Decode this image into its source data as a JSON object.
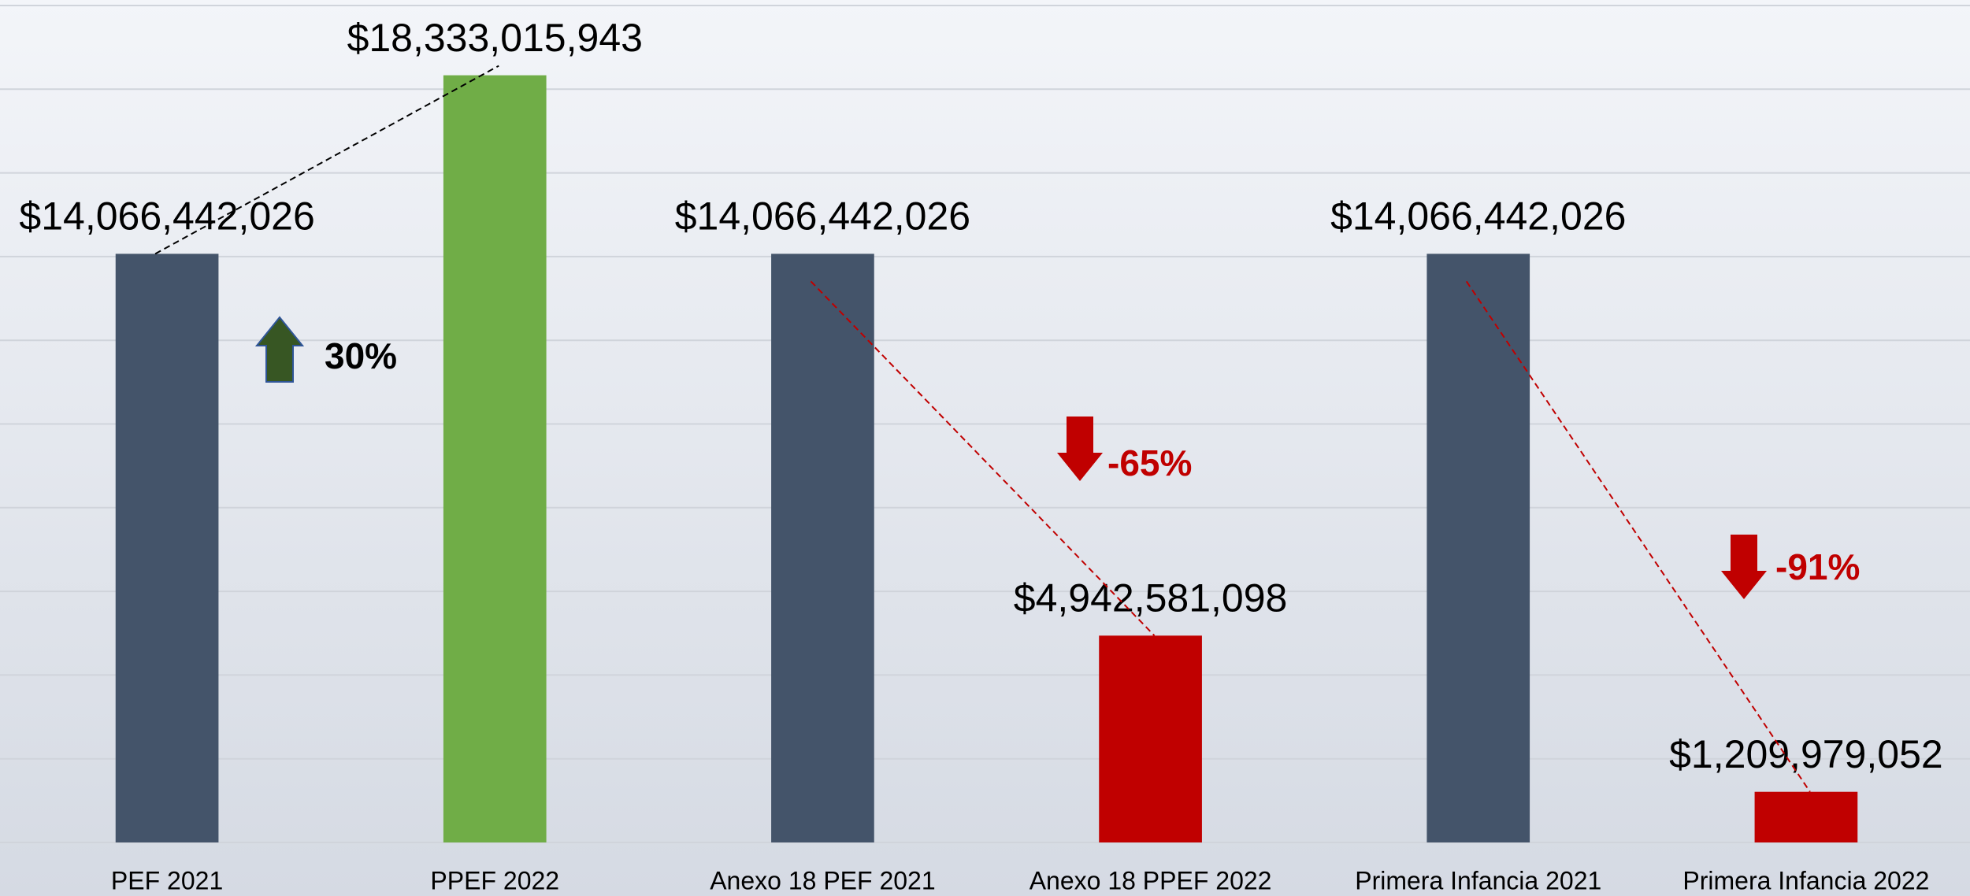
{
  "chart_data": {
    "type": "bar",
    "categories": [
      "PEF 2021",
      "PPEF 2022",
      "Anexo 18 PEF 2021",
      "Anexo 18 PPEF 2022",
      "Primera Infancia 2021",
      "Primera Infancia 2022"
    ],
    "values": [
      14066442026,
      18333015943,
      14066442026,
      4942581098,
      14066442026,
      1209979052
    ],
    "value_labels": [
      "$14,066,442,026",
      "$18,333,015,943",
      "$14,066,442,026",
      "$4,942,581,098",
      "$14,066,442,026",
      "$1,209,979,052"
    ],
    "colors": [
      "#44546a",
      "#70ad47",
      "#44546a",
      "#c00000",
      "#44546a",
      "#c00000"
    ],
    "ylim": [
      0,
      20000000000
    ],
    "yticks": [
      0,
      2000000000,
      4000000000,
      6000000000,
      8000000000,
      10000000000,
      12000000000,
      14000000000,
      16000000000,
      18000000000,
      20000000000
    ],
    "grid": true,
    "annotations": [
      {
        "text": "30%",
        "color": "#000000",
        "arrow_color": "#375623"
      },
      {
        "text": "-65%",
        "color": "#c00000",
        "arrow_color": "#c00000"
      },
      {
        "text": "-91%",
        "color": "#c00000",
        "arrow_color": "#c00000"
      }
    ]
  }
}
